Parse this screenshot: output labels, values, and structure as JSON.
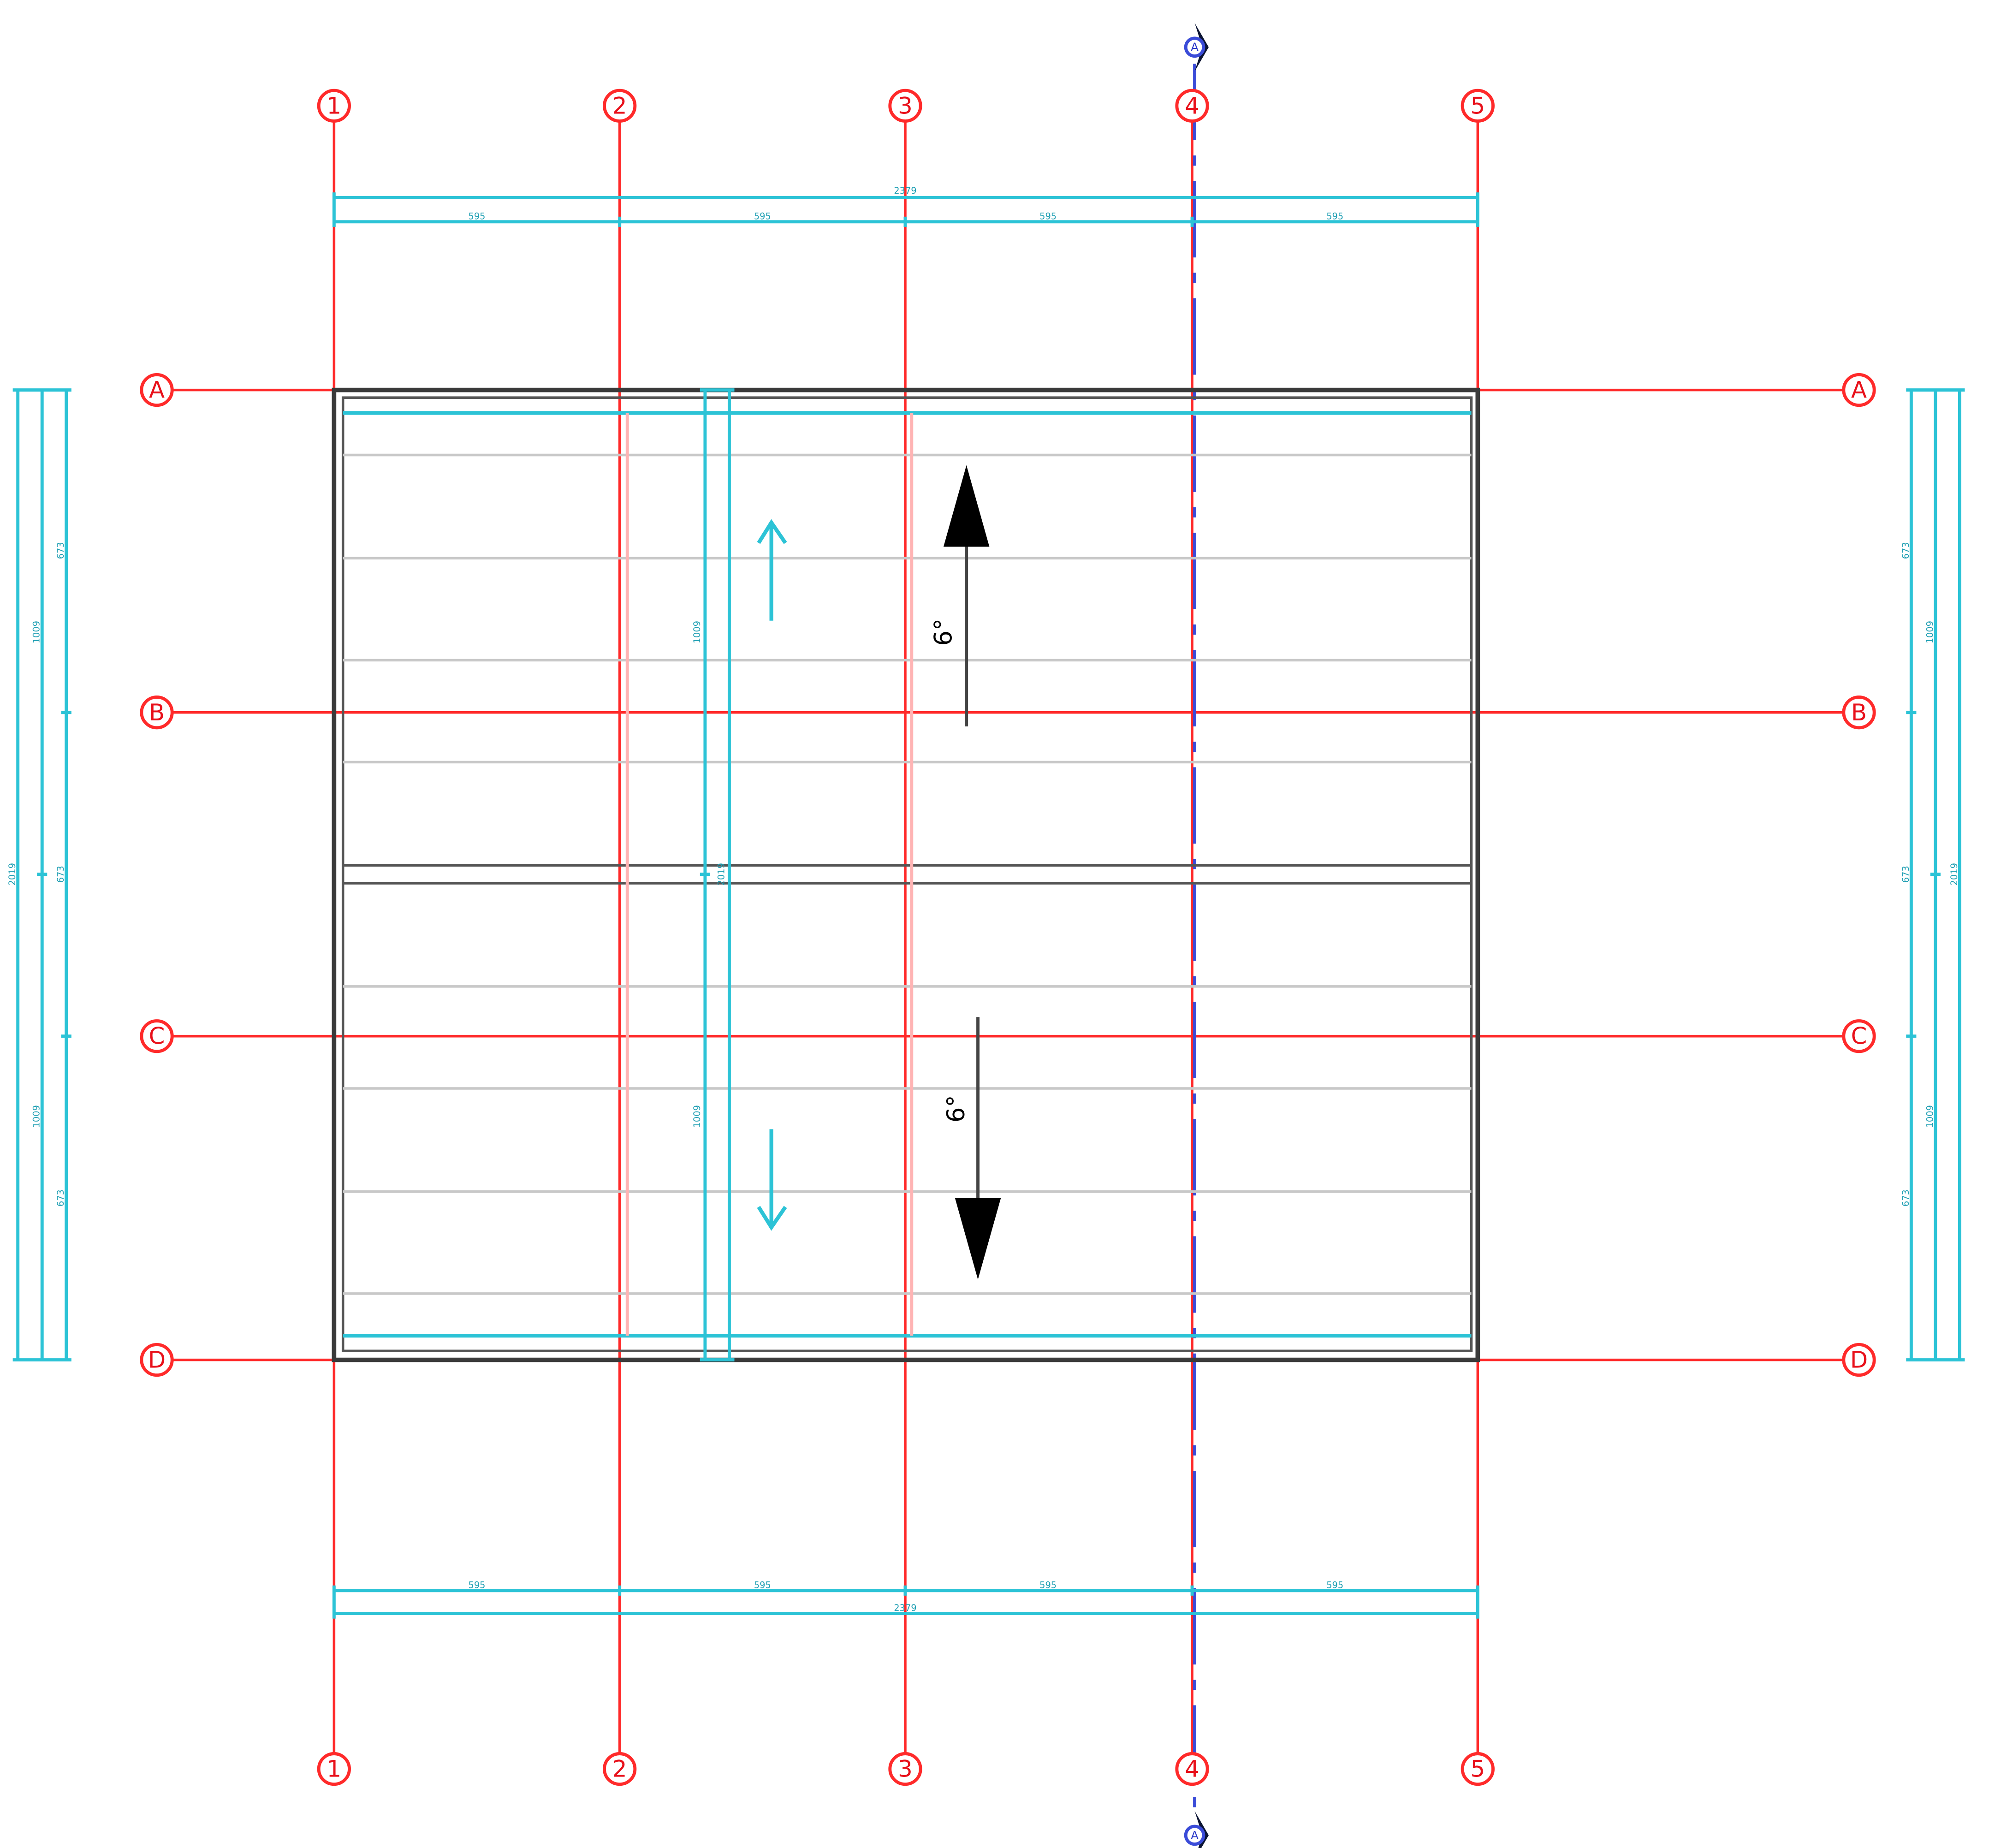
{
  "grid": {
    "columns": [
      "1",
      "2",
      "3",
      "4",
      "5"
    ],
    "rows": [
      "A",
      "B",
      "C",
      "D"
    ]
  },
  "dimensions": {
    "horizontal_bays": [
      "595",
      "595",
      "595",
      "595"
    ],
    "horizontal_total": "2379",
    "vertical_thirds": [
      "673",
      "673",
      "673",
      "673",
      "673",
      "673"
    ],
    "vertical_halves": [
      "1009",
      "1009"
    ],
    "vertical_total": "2019"
  },
  "section": {
    "label": "A"
  },
  "slopes": {
    "upper": "6°",
    "lower": "6°"
  },
  "colors": {
    "grid": "#ff2a2a",
    "dimension": "#2cc3d6",
    "section": "#3a4bd8",
    "outline": "#3a3a3a"
  }
}
